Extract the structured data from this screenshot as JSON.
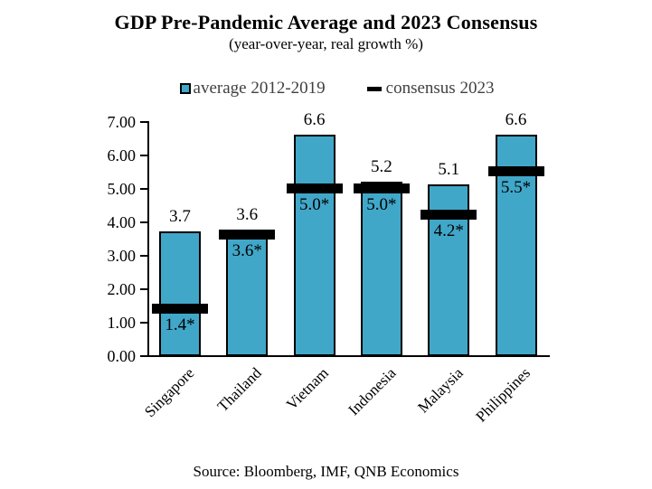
{
  "title": "GDP Pre-Pandemic Average and 2023 Consensus",
  "subtitle": "(year-over-year, real growth %)",
  "source": "Source: Bloomberg, IMF, QNB Economics",
  "legend": [
    {
      "label": "average 2012-2019",
      "swatch": "square-icon",
      "color": "#41A7C9"
    },
    {
      "label": "consensus 2023",
      "swatch": "dash-icon",
      "color": "#000000"
    }
  ],
  "colors": {
    "bar_fill": "#41A7C9",
    "bar_border": "#000000",
    "consensus_dash": "#000000",
    "axis": "#000000",
    "legend_text": "#404040",
    "text": "#000000",
    "background": "#ffffff"
  },
  "chart_data": {
    "type": "bar",
    "title": "GDP Pre-Pandemic Average and 2023 Consensus",
    "subtitle": "(year-over-year, real growth %)",
    "xlabel": "",
    "ylabel": "",
    "categories": [
      "Singapore",
      "Thailand",
      "Vietnam",
      "Indonesia",
      "Malaysia",
      "Philippines"
    ],
    "series": [
      {
        "name": "average 2012-2019",
        "mark": "bar",
        "values": [
          3.7,
          3.6,
          6.6,
          5.2,
          5.1,
          6.6
        ],
        "labels": [
          "3.7",
          "3.6",
          "6.6",
          "5.2",
          "5.1",
          "6.6"
        ]
      },
      {
        "name": "consensus 2023",
        "mark": "dash",
        "values": [
          1.4,
          3.6,
          5.0,
          5.0,
          4.2,
          5.5
        ],
        "labels": [
          "1.4*",
          "3.6*",
          "5.0*",
          "5.0*",
          "4.2*",
          "5.5*"
        ]
      }
    ],
    "ylim": [
      0,
      7
    ],
    "ytick_step": 1,
    "ytick_labels": [
      "0.00",
      "1.00",
      "2.00",
      "3.00",
      "4.00",
      "5.00",
      "6.00",
      "7.00"
    ],
    "grid": false,
    "legend_position": "top"
  }
}
